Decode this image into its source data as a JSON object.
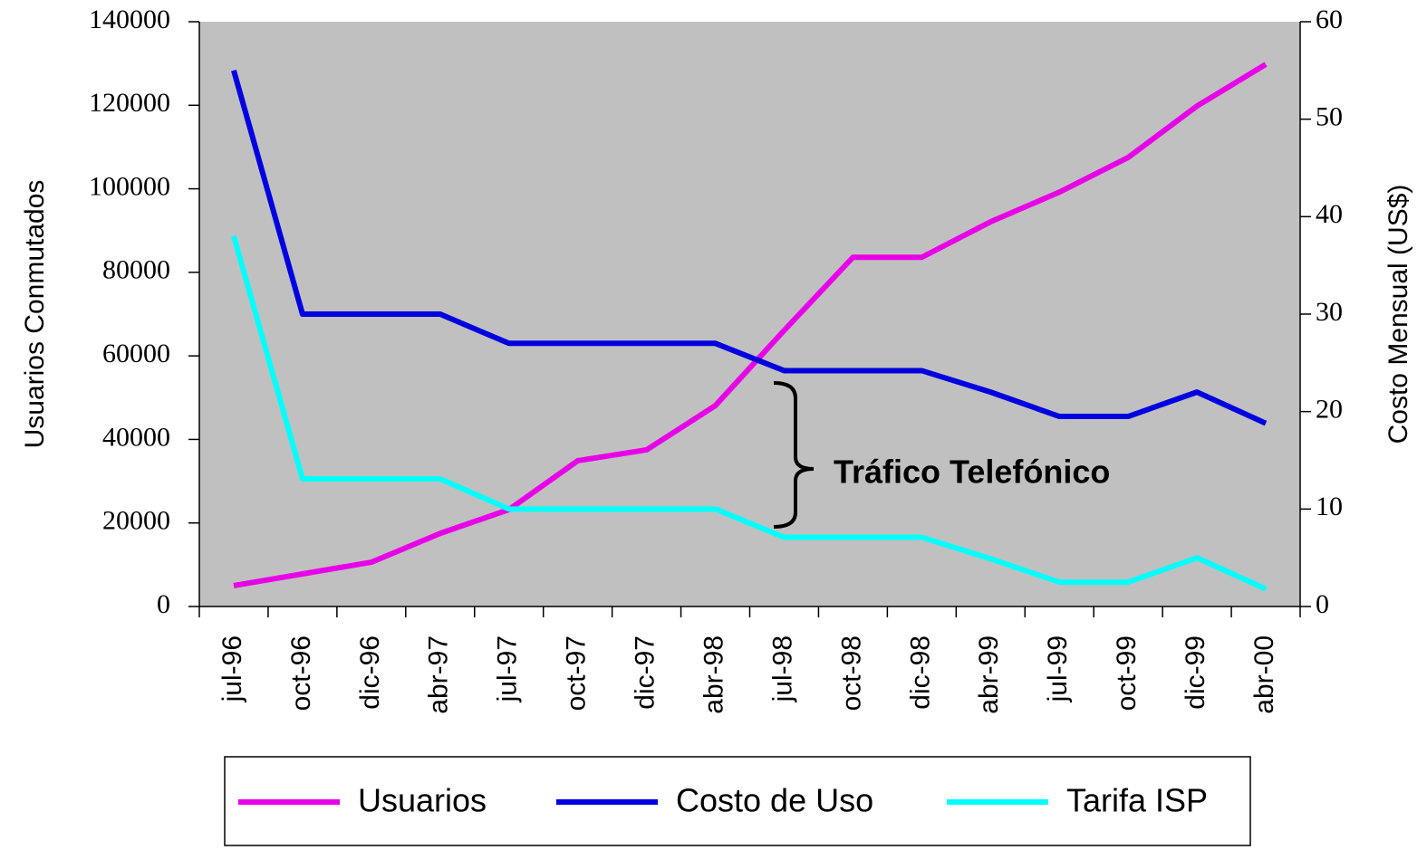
{
  "chart_data": {
    "type": "line",
    "ylabel": "Usuarios Conmutados",
    "y2label": "Costo Mensual (US$)",
    "annotation": "Tráfico Telefónico",
    "categories": [
      "jul-96",
      "oct-96",
      "dic-96",
      "abr-97",
      "jul-97",
      "oct-97",
      "dic-97",
      "abr-98",
      "jul-98",
      "oct-98",
      "dic-98",
      "abr-99",
      "jul-99",
      "oct-99",
      "dic-99",
      "abr-00"
    ],
    "series": [
      {
        "name": "Usuarios",
        "color": "#e800e8",
        "values": [
          5000,
          7800,
          10600,
          17500,
          23200,
          34900,
          37500,
          48100,
          66100,
          83600,
          83600,
          92100,
          99200,
          107500,
          119800,
          129800
        ]
      },
      {
        "name": "Costo de Uso",
        "color": "#0000e0",
        "axis": "y2",
        "values": [
          55,
          30,
          30,
          30,
          27,
          27,
          27,
          27,
          24.2,
          24.2,
          24.2,
          22,
          19.5,
          19.5,
          22,
          18.8
        ]
      },
      {
        "name": "Tarifa ISP",
        "color": "#00ffff",
        "axis": "y2",
        "values": [
          38,
          13.1,
          13.1,
          13.1,
          10,
          10,
          10,
          10,
          7.1,
          7.1,
          7.1,
          4.9,
          2.5,
          2.5,
          5,
          1.8
        ]
      }
    ],
    "ylim": [
      0,
      140000
    ],
    "yticks": [
      0,
      20000,
      40000,
      60000,
      80000,
      100000,
      120000,
      140000
    ],
    "y2lim": [
      0,
      60
    ],
    "y2ticks": [
      0,
      10,
      20,
      30,
      40,
      50,
      60
    ],
    "grid": false,
    "legend": "bottom"
  }
}
